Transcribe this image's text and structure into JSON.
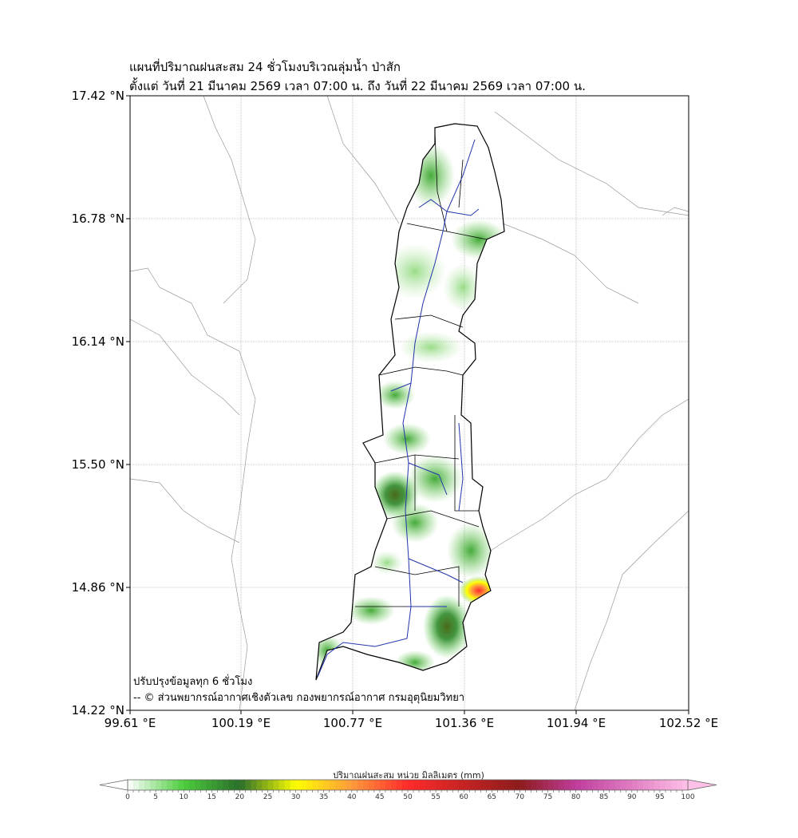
{
  "title": {
    "line1": "แผนที่ปริมาณฝนสะสม 24 ชั่วโมงบริเวณลุ่มน้ำ ป่าสัก",
    "line2": "ตั้งแต่ วันที่ 21 มีนาคม 2569 เวลา 07:00 น. ถึง วันที่ 22 มีนาคม 2569 เวลา 07:00 น."
  },
  "axes": {
    "y_labels": [
      "17.42 °N",
      "16.78 °N",
      "16.14 °N",
      "15.50 °N",
      "14.86 °N",
      "14.22 °N"
    ],
    "x_labels": [
      "99.61 °E",
      "100.19 °E",
      "100.77 °E",
      "101.36 °E",
      "101.94 °E",
      "102.52 °E"
    ]
  },
  "footer": {
    "line1": "ปรับปรุงข้อมูลทุก 6 ชั่วโมง",
    "line2": "-- © ส่วนพยากรณ์อากาศเชิงตัวเลข กองพยากรณ์อากาศ กรมอุตุนิยมวิทยา"
  },
  "colorbar": {
    "title": "ปริมาณฝนสะสม หน่วย มิลลิเมตร (mm)",
    "ticks": [
      "0",
      "5",
      "10",
      "15",
      "20",
      "25",
      "30",
      "35",
      "40",
      "45",
      "50",
      "55",
      "60",
      "65",
      "70",
      "75",
      "80",
      "85",
      "90",
      "95",
      "100"
    ],
    "min": 0,
    "max": 100,
    "step": 1,
    "stops": [
      {
        "v": 0,
        "c": "#ffffff"
      },
      {
        "v": 10,
        "c": "#4ccc3c"
      },
      {
        "v": 20,
        "c": "#2a6e2a"
      },
      {
        "v": 30,
        "c": "#ffff00"
      },
      {
        "v": 40,
        "c": "#ff9a3c"
      },
      {
        "v": 50,
        "c": "#ff2a2a"
      },
      {
        "v": 70,
        "c": "#8c1c1c"
      },
      {
        "v": 80,
        "c": "#c03c9c"
      },
      {
        "v": 100,
        "c": "#ffc0e8"
      }
    ]
  },
  "colors": {
    "river": "#2233aa",
    "boundary": "#000000",
    "grid": "#999999",
    "admin": "#999999"
  }
}
